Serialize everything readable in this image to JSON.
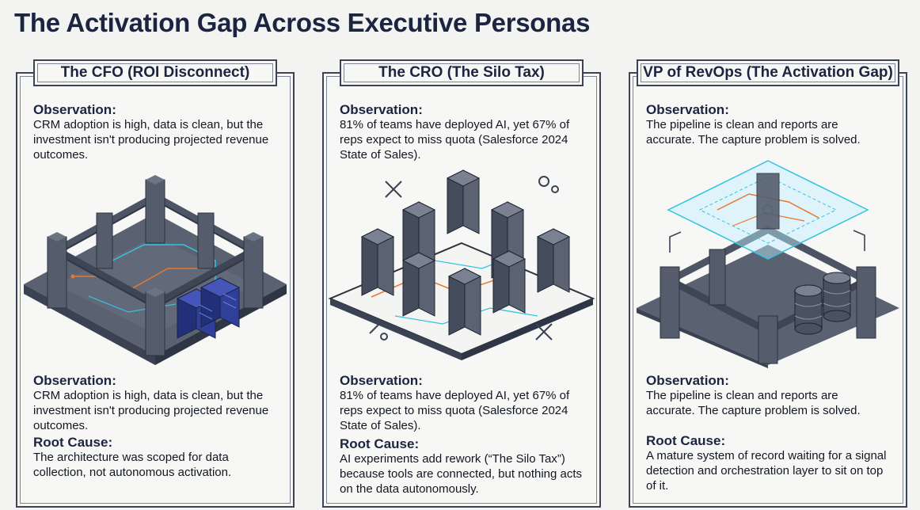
{
  "page": {
    "title": "The Activation Gap Across Executive Personas"
  },
  "panels": [
    {
      "header": "The CFO (ROI Disconnect)",
      "top_observation_label": "Observation:",
      "top_observation": "CRM adoption is high, data is clean, but the investment isn't producing projected revenue outcomes.",
      "observation_label": "Observation:",
      "observation": "CRM adoption is high, data is clean, but the investment isn't producing projected revenue outcomes.",
      "root_cause_label": "Root Cause:",
      "root_cause": "The architecture was scoped for data collection, not autonomous activation.",
      "illustration_icon": "pillared-platform-with-servers"
    },
    {
      "header": "The CRO (The Silo Tax)",
      "top_observation_label": "Observation:",
      "top_observation": "81% of teams have deployed AI, yet 67% of reps expect to miss quota (Salesforce 2024 State of Sales).",
      "observation_label": "Observation:",
      "observation": "81% of teams have deployed AI, yet 67% of reps expect to miss quota (Salesforce 2024 State of Sales).",
      "root_cause_label": "Root Cause:",
      "root_cause": "AI experiments add rework (“The Silo Tax”) because tools are connected, but nothing acts on the data autonomously.",
      "illustration_icon": "disconnected-server-towers"
    },
    {
      "header": "VP of RevOps (The Activation Gap)",
      "top_observation_label": "Observation:",
      "top_observation": "The pipeline is clean and reports are accurate. The capture problem is solved.",
      "observation_label": "Observation:",
      "observation": "The pipeline is clean and reports are accurate. The capture problem is solved.",
      "root_cause_label": "Root Cause:",
      "root_cause": "A mature system of record waiting for a signal detection and orchestration layer to sit on top of it.",
      "illustration_icon": "platform-with-holographic-layer"
    }
  ],
  "colors": {
    "ink": "#1b2440",
    "stone": "#4d5565",
    "stone_dark": "#3b4353",
    "stone_light": "#6c7484",
    "accent_blue": "#2f3f9a",
    "accent_cyan": "#35c3e0",
    "accent_orange": "#e8772e"
  }
}
